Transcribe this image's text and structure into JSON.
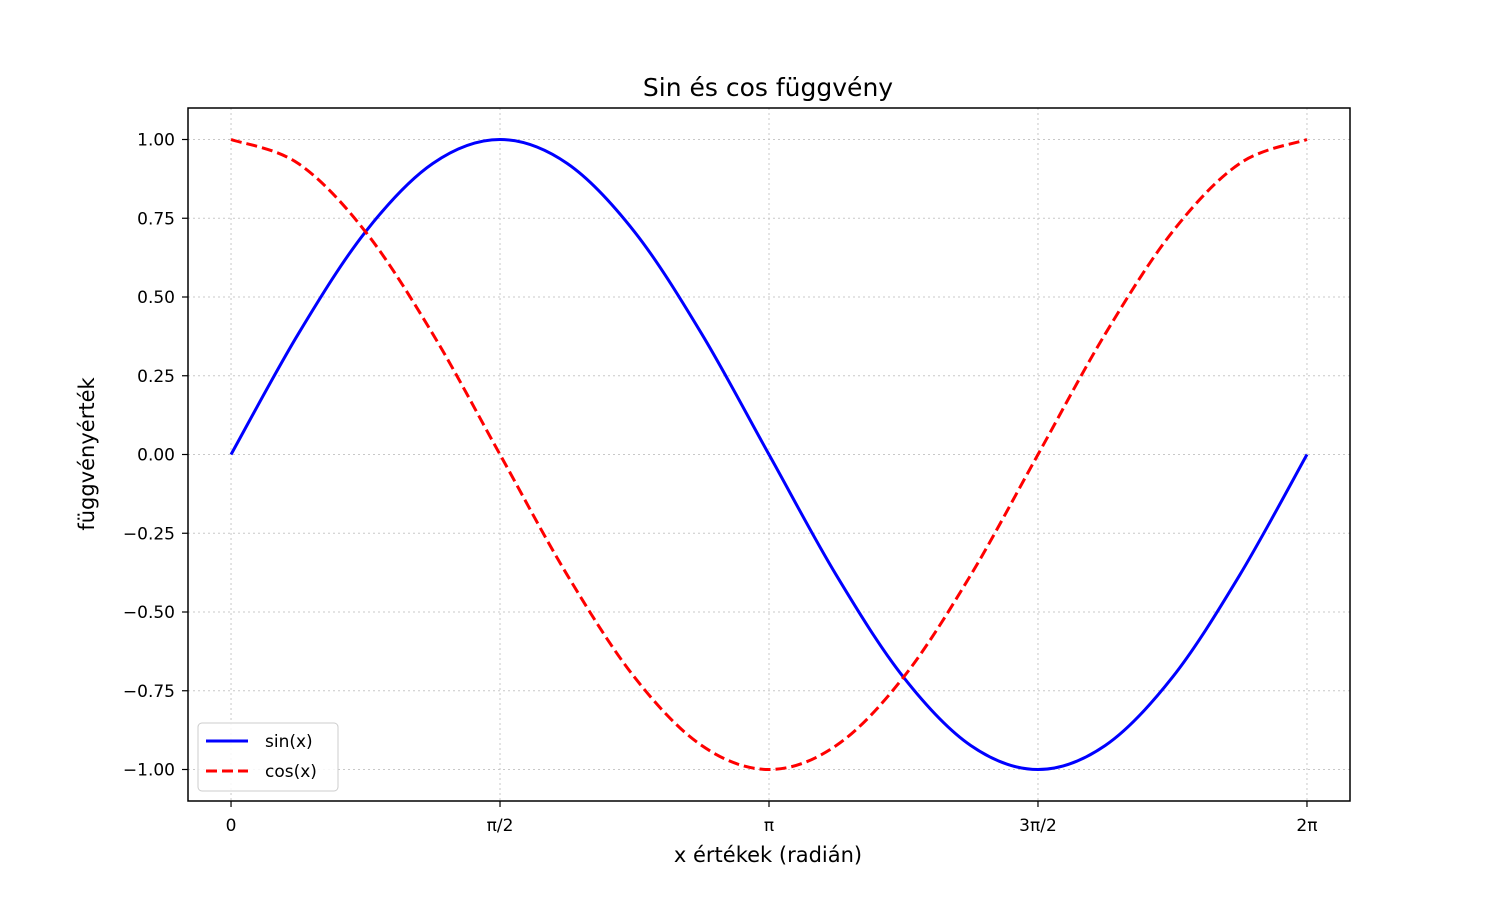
{
  "chart_data": {
    "type": "line",
    "title": "Sin és cos függvény",
    "xlabel": "x értékek (radián)",
    "ylabel": "függvényérték",
    "xlim": [
      -0.2513,
      6.5345
    ],
    "ylim": [
      -1.1,
      1.1
    ],
    "x_ticks": [
      {
        "value": 0,
        "label": "0"
      },
      {
        "value": 1.5708,
        "label": "π/2"
      },
      {
        "value": 3.1416,
        "label": "π"
      },
      {
        "value": 4.7124,
        "label": "3π/2"
      },
      {
        "value": 6.2832,
        "label": "2π"
      }
    ],
    "y_ticks": [
      {
        "value": 1.0,
        "label": "1.00"
      },
      {
        "value": 0.75,
        "label": "0.75"
      },
      {
        "value": 0.5,
        "label": "0.50"
      },
      {
        "value": 0.25,
        "label": "0.25"
      },
      {
        "value": 0.0,
        "label": "0.00"
      },
      {
        "value": -0.25,
        "label": "−0.25"
      },
      {
        "value": -0.5,
        "label": "−0.50"
      },
      {
        "value": -0.75,
        "label": "−0.75"
      },
      {
        "value": -1.0,
        "label": "−1.00"
      }
    ],
    "grid": true,
    "legend_position": "lower-left",
    "x": [
      0,
      0.3927,
      0.7854,
      1.1781,
      1.5708,
      1.9635,
      2.3562,
      2.7489,
      3.1416,
      3.5343,
      3.927,
      4.3197,
      4.7124,
      5.1051,
      5.4978,
      5.8905,
      6.2832
    ],
    "series": [
      {
        "name": "sin(x)",
        "color": "#0000ff",
        "style": "solid",
        "values": [
          0,
          0.3827,
          0.7071,
          0.9239,
          1,
          0.9239,
          0.7071,
          0.3827,
          0,
          -0.3827,
          -0.7071,
          -0.9239,
          -1,
          -0.9239,
          -0.7071,
          -0.3827,
          0
        ]
      },
      {
        "name": "cos(x)",
        "color": "#ff0000",
        "style": "dashed",
        "values": [
          1,
          0.9239,
          0.7071,
          0.3827,
          0,
          -0.3827,
          -0.7071,
          -0.9239,
          -1,
          -0.9239,
          -0.7071,
          -0.3827,
          0,
          0.3827,
          0.7071,
          0.9239,
          1
        ]
      }
    ]
  }
}
